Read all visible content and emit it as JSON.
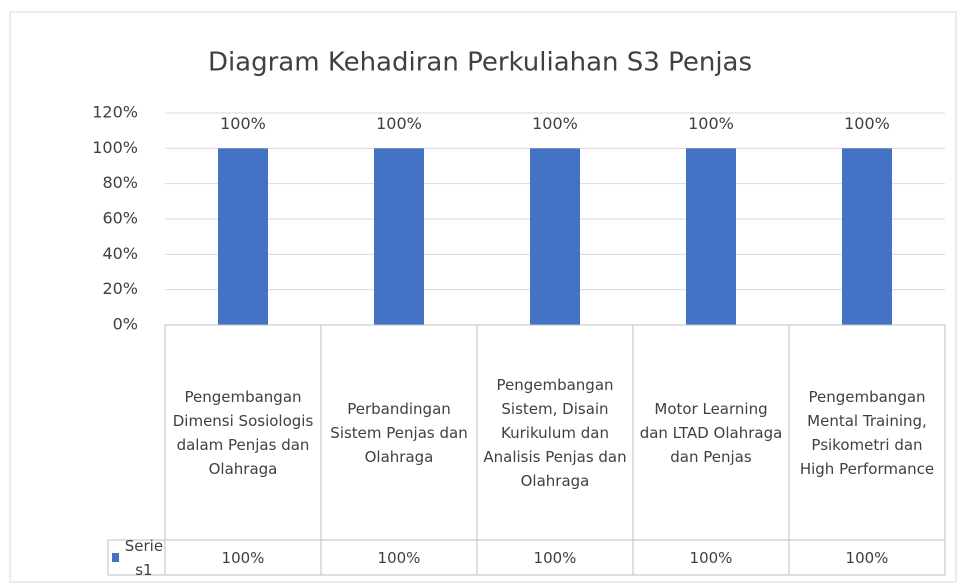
{
  "chart_data": {
    "type": "bar",
    "title": "Diagram Kehadiran Perkuliahan S3 Penjas",
    "categories": [
      "Pengembangan Dimensi Sosiologis dalam Penjas dan Olahraga",
      "Perbandingan Sistem Penjas dan Olahraga",
      "Pengembangan Sistem, Disain Kurikulum dan Analisis Penjas dan Olahraga",
      "Motor Learning dan LTAD Olahraga dan Penjas",
      "Pengembangan Mental Training, Psikometri dan High Performance"
    ],
    "series": [
      {
        "name": "Series1",
        "color": "#4472c4",
        "values": [
          100,
          100,
          100,
          100,
          100
        ],
        "value_labels": [
          "100%",
          "100%",
          "100%",
          "100%",
          "100%"
        ]
      }
    ],
    "ylim": [
      0,
      120
    ],
    "yticks": [
      {
        "value": 0,
        "label": "0%"
      },
      {
        "value": 20,
        "label": "20%"
      },
      {
        "value": 40,
        "label": "40%"
      },
      {
        "value": 60,
        "label": "60%"
      },
      {
        "value": 80,
        "label": "80%"
      },
      {
        "value": 100,
        "label": "100%"
      },
      {
        "value": 120,
        "label": "120%"
      }
    ],
    "grid": true,
    "data_table": true
  }
}
